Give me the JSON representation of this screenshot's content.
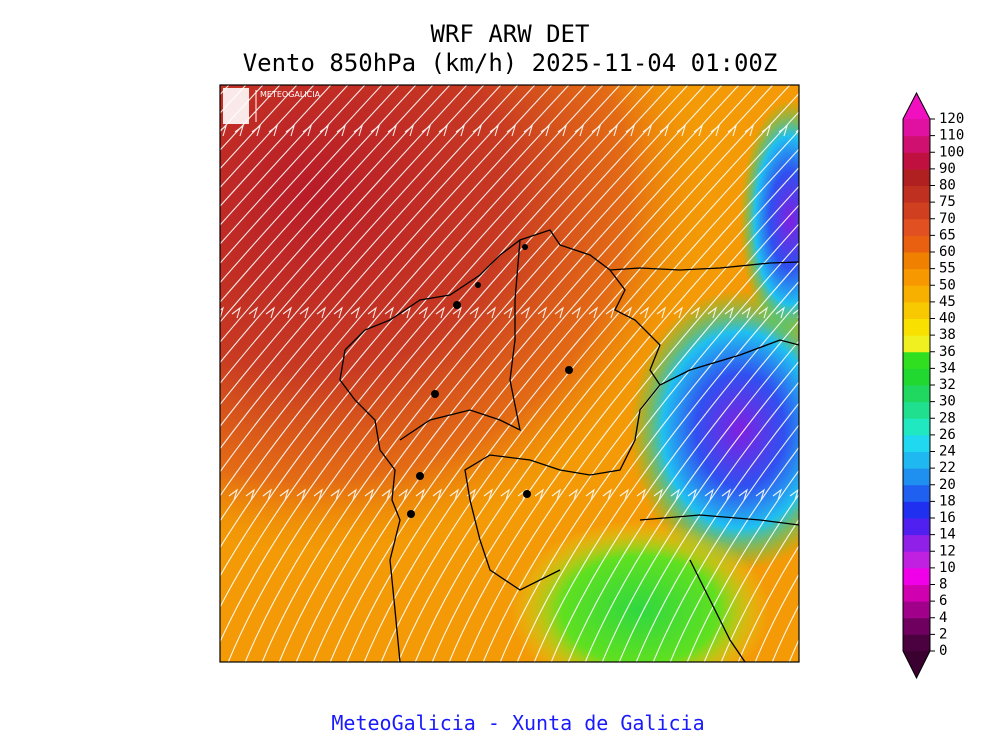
{
  "header": {
    "title": "WRF ARW DET",
    "subtitle": "Vento 850hPa (km/h) 2025-11-04 01:00Z"
  },
  "logo": {
    "text": "METEOGALICIA"
  },
  "colorbar": {
    "ticks": [
      0,
      2,
      4,
      6,
      8,
      10,
      12,
      14,
      16,
      18,
      20,
      22,
      24,
      26,
      28,
      30,
      32,
      34,
      36,
      38,
      40,
      45,
      50,
      55,
      60,
      65,
      70,
      75,
      80,
      90,
      100,
      110,
      120
    ],
    "colors": [
      "#4b0040",
      "#700060",
      "#a0008a",
      "#d000b0",
      "#f000e8",
      "#c020e0",
      "#9020e8",
      "#5020f0",
      "#2030f0",
      "#2060f0",
      "#2090f0",
      "#20b8f0",
      "#20d8f0",
      "#20e8c0",
      "#20e090",
      "#20d860",
      "#20d830",
      "#30e020",
      "#f0f020",
      "#f8e000",
      "#f8c800",
      "#f8b000",
      "#f89800",
      "#f08000",
      "#e86010",
      "#e05020",
      "#d04020",
      "#c03020",
      "#b02020",
      "#c01040",
      "#d01070",
      "#e010a0"
    ],
    "under_color": "#3a0030",
    "over_color": "#f010c0"
  },
  "footer": {
    "text": "MeteoGalicia - Xunta de Galicia"
  }
}
